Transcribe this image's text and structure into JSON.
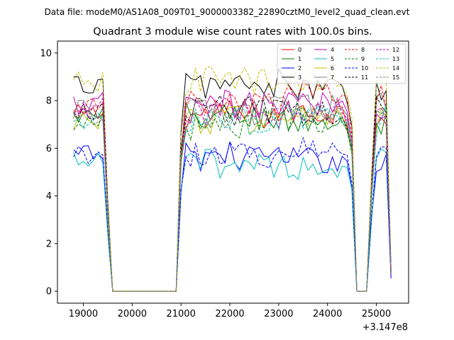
{
  "header": {
    "suptitle": "Data file: modeM0/AS1A08_009T01_9000003382_22890cztM0_level2_quad_clean.evt"
  },
  "chart_data": {
    "type": "line",
    "title": "Quadrant 3 module wise count rates with 100.0s bins.",
    "xlabel": "",
    "ylabel": "",
    "x_offset_label": "+3.147e8",
    "xlim": [
      18470,
      25660
    ],
    "ylim": [
      -0.5,
      10.5
    ],
    "xticks": [
      19000,
      20000,
      21000,
      22000,
      23000,
      24000,
      25000
    ],
    "yticks": [
      0,
      2,
      4,
      6,
      8,
      10
    ],
    "grid": false,
    "legend": {
      "placement": "top-right",
      "columns": 4
    },
    "x_segments": [
      {
        "start": 18800,
        "end": 19500,
        "step": 100
      },
      {
        "start": 19600,
        "end": 20900,
        "step": 100
      },
      {
        "start": 21000,
        "end": 24500,
        "step": 100
      },
      {
        "start": 24600,
        "end": 24800,
        "step": 100
      },
      {
        "start": 24900,
        "end": 25300,
        "step": 100
      }
    ],
    "series": [
      {
        "name": "0",
        "color": "#ff0000",
        "dash": "solid",
        "levels": [
          7.4,
          7.4,
          7.5,
          7.6
        ]
      },
      {
        "name": "1",
        "color": "#008000",
        "dash": "solid",
        "levels": [
          7.3,
          7.3,
          7.1,
          7.0
        ]
      },
      {
        "name": "2",
        "color": "#0000ff",
        "dash": "solid",
        "levels": [
          5.7,
          5.7,
          5.5,
          5.6
        ]
      },
      {
        "name": "3",
        "color": "#000000",
        "dash": "solid",
        "levels": [
          8.7,
          8.7,
          8.5,
          8.6
        ]
      },
      {
        "name": "4",
        "color": "#bf00bf",
        "dash": "solid",
        "levels": [
          7.8,
          7.8,
          7.9,
          7.9
        ]
      },
      {
        "name": "5",
        "color": "#00bfbf",
        "dash": "solid",
        "levels": [
          5.4,
          5.4,
          5.2,
          5.3
        ]
      },
      {
        "name": "6",
        "color": "#bfbf00",
        "dash": "solid",
        "levels": [
          7.2,
          7.2,
          7.3,
          7.1
        ]
      },
      {
        "name": "7",
        "color": "#808080",
        "dash": "solid",
        "levels": [
          7.6,
          7.6,
          7.7,
          7.8
        ]
      },
      {
        "name": "8",
        "color": "#ff0000",
        "dash": "dashed",
        "levels": [
          7.8,
          7.8,
          8.3,
          8.2
        ]
      },
      {
        "name": "9",
        "color": "#008000",
        "dash": "dashed",
        "levels": [
          7.0,
          7.0,
          7.2,
          7.1
        ]
      },
      {
        "name": "10",
        "color": "#0000ff",
        "dash": "dashed",
        "levels": [
          5.8,
          5.8,
          5.9,
          5.8
        ]
      },
      {
        "name": "11",
        "color": "#000000",
        "dash": "dashed",
        "levels": [
          7.6,
          7.6,
          7.5,
          7.6
        ]
      },
      {
        "name": "12",
        "color": "#bf00bf",
        "dash": "dashed",
        "levels": [
          7.5,
          7.5,
          7.7,
          7.6
        ]
      },
      {
        "name": "13",
        "color": "#00bfbf",
        "dash": "dashed",
        "levels": [
          7.1,
          7.1,
          7.3,
          7.2
        ]
      },
      {
        "name": "14",
        "color": "#bfbf00",
        "dash": "dashed",
        "levels": [
          8.8,
          8.8,
          8.9,
          8.8
        ]
      },
      {
        "name": "15",
        "color": "#808080",
        "dash": "dashed",
        "levels": [
          7.4,
          7.4,
          7.6,
          7.5
        ]
      }
    ]
  }
}
